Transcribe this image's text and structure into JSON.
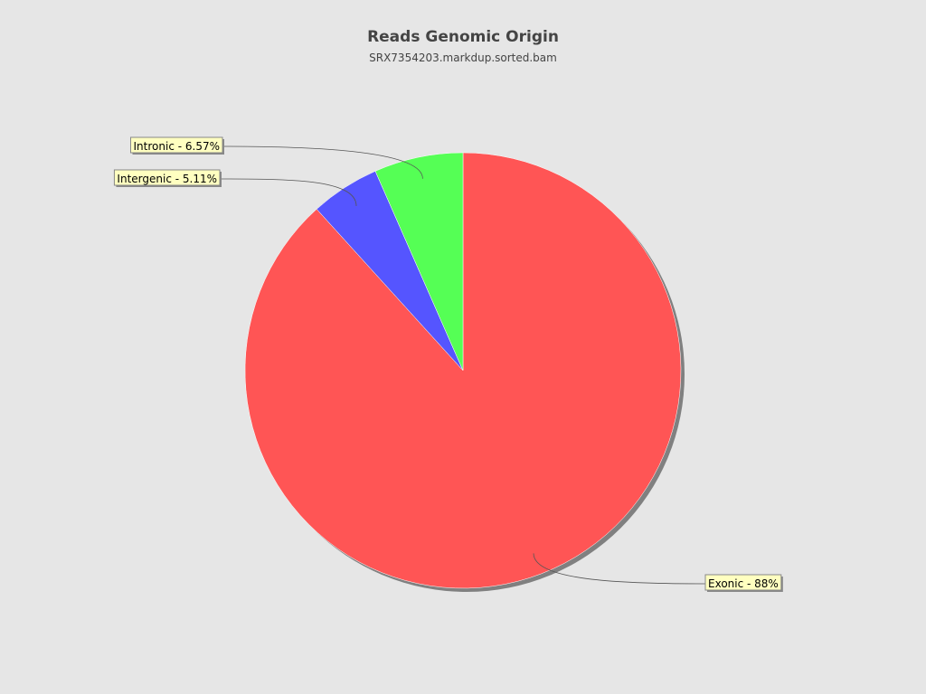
{
  "chart_data": {
    "type": "pie",
    "title": "Reads Genomic Origin",
    "subtitle": "SRX7354203.markdup.sorted.bam",
    "slices": [
      {
        "name": "Exonic",
        "value": 88,
        "label": "Exonic - 88%",
        "color": "#ff5555"
      },
      {
        "name": "Intergenic",
        "value": 5.11,
        "label": "Intergenic - 5.11%",
        "color": "#5555ff"
      },
      {
        "name": "Intronic",
        "value": 6.57,
        "label": "Intronic - 6.57%",
        "color": "#55ff55"
      }
    ],
    "start_angle": "top",
    "direction": "clockwise",
    "label_background": "#ffffc0",
    "shadow_color": "#808080"
  }
}
